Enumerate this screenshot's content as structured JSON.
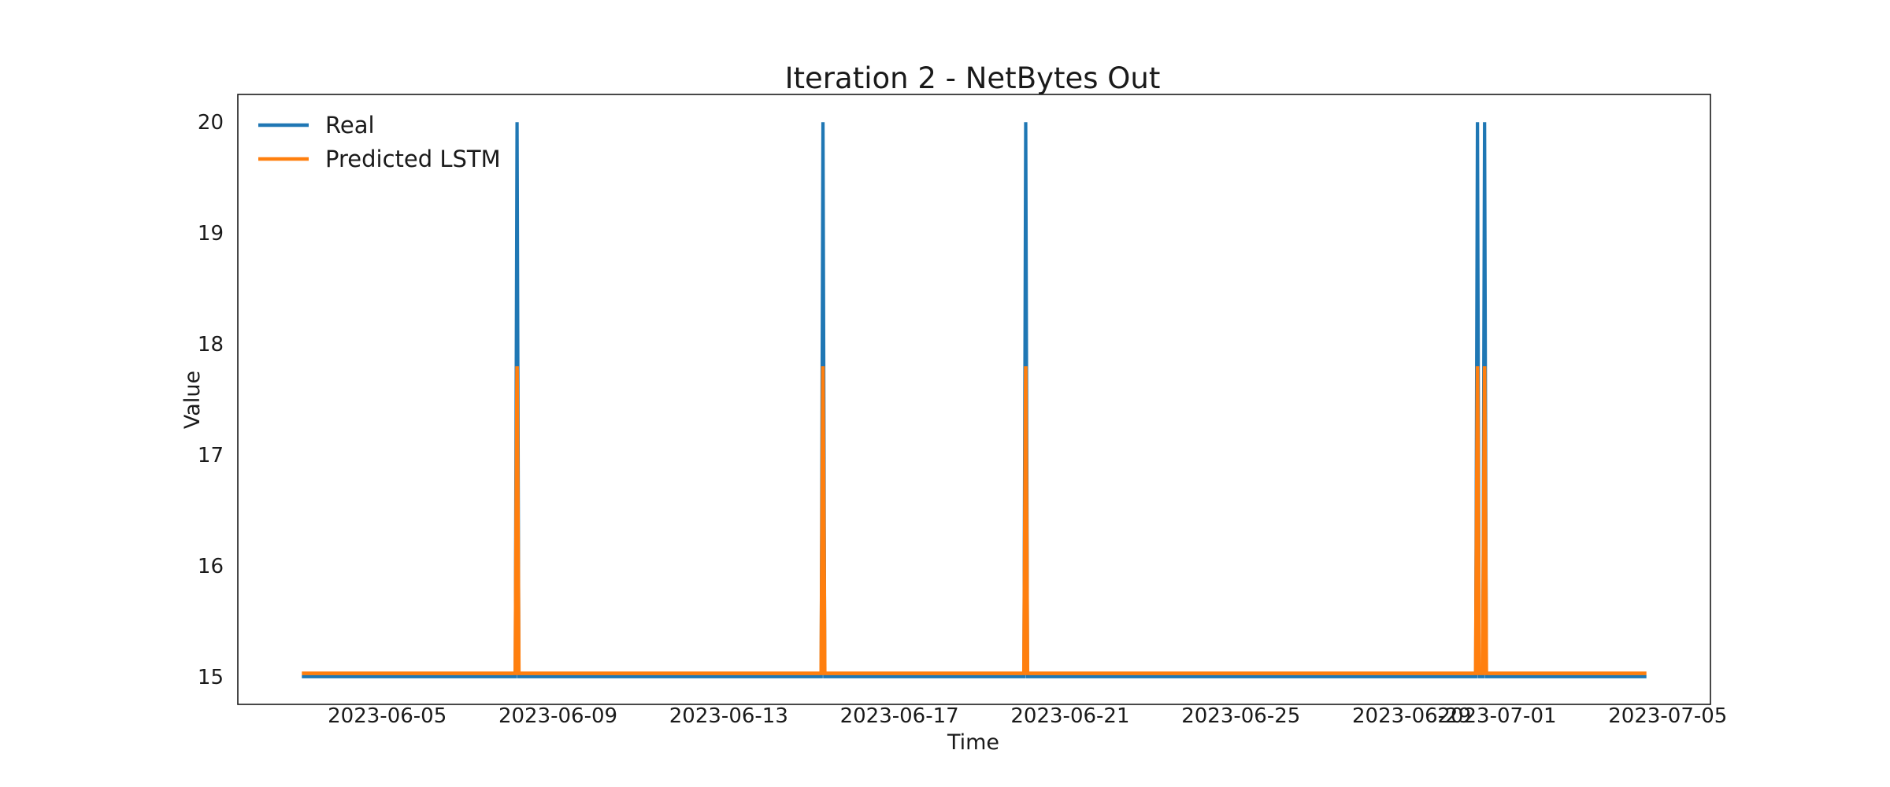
{
  "chart_data": {
    "type": "line",
    "title": "Iteration 2 - NetBytes Out",
    "xlabel": "Time",
    "ylabel": "Value",
    "x_type": "date",
    "xlim": [
      "2023-06-01T12:00",
      "2023-07-06T00:00"
    ],
    "ylim": [
      14.75,
      20.25
    ],
    "x_ticks": [
      "2023-06-05",
      "2023-06-09",
      "2023-06-13",
      "2023-06-17",
      "2023-06-21",
      "2023-06-25",
      "2023-06-29",
      "2023-07-01",
      "2023-07-05"
    ],
    "y_ticks": [
      "15",
      "16",
      "17",
      "18",
      "19",
      "20"
    ],
    "grid": false,
    "legend_position": "top-left",
    "series": [
      {
        "name": "Real",
        "color": "#1f77b4",
        "points": [
          [
            "2023-06-03T00:00",
            15
          ],
          [
            "2023-06-08T00:00",
            15
          ],
          [
            "2023-06-08T01:00",
            20
          ],
          [
            "2023-06-08T02:00",
            15
          ],
          [
            "2023-06-15T04:00",
            15
          ],
          [
            "2023-06-15T05:00",
            20
          ],
          [
            "2023-06-15T06:00",
            15
          ],
          [
            "2023-06-19T22:00",
            15
          ],
          [
            "2023-06-19T23:00",
            20
          ],
          [
            "2023-06-20T00:00",
            15
          ],
          [
            "2023-06-30T12:00",
            15
          ],
          [
            "2023-06-30T13:00",
            20
          ],
          [
            "2023-06-30T14:00",
            15
          ],
          [
            "2023-06-30T16:00",
            15
          ],
          [
            "2023-06-30T17:00",
            20
          ],
          [
            "2023-06-30T18:00",
            15
          ],
          [
            "2023-07-04T12:00",
            15
          ]
        ]
      },
      {
        "name": "Predicted LSTM",
        "color": "#ff7f0e",
        "points": [
          [
            "2023-06-03T00:00",
            15.03
          ],
          [
            "2023-06-08T00:00",
            15.03
          ],
          [
            "2023-06-08T01:00",
            17.8
          ],
          [
            "2023-06-08T02:00",
            15.03
          ],
          [
            "2023-06-15T04:00",
            15.03
          ],
          [
            "2023-06-15T05:00",
            17.8
          ],
          [
            "2023-06-15T06:00",
            15.03
          ],
          [
            "2023-06-19T22:00",
            15.03
          ],
          [
            "2023-06-19T23:00",
            17.8
          ],
          [
            "2023-06-20T00:00",
            15.03
          ],
          [
            "2023-06-30T12:00",
            15.03
          ],
          [
            "2023-06-30T13:00",
            17.8
          ],
          [
            "2023-06-30T14:00",
            15.03
          ],
          [
            "2023-06-30T16:00",
            15.03
          ],
          [
            "2023-06-30T17:00",
            17.8
          ],
          [
            "2023-06-30T18:00",
            15.03
          ],
          [
            "2023-07-04T12:00",
            15.03
          ]
        ]
      }
    ]
  }
}
